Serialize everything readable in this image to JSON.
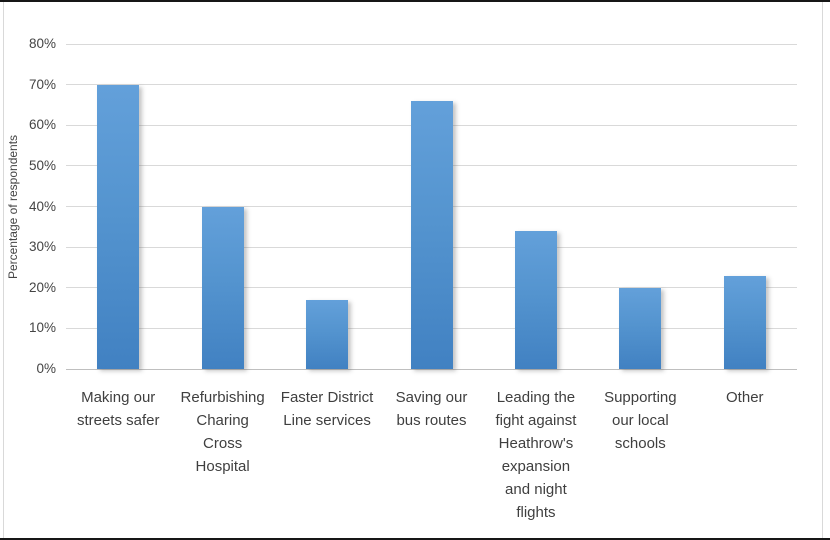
{
  "chart_data": {
    "type": "bar",
    "title": "",
    "categories": [
      "Making our streets safer",
      "Refurbishing Charing Cross Hospital",
      "Faster District Line services",
      "Saving our bus routes",
      "Leading the fight against Heathrow's expansion and night flights",
      "Supporting our local schools",
      "Other"
    ],
    "values": [
      70,
      40,
      17,
      66,
      34,
      20,
      23
    ],
    "value_unit": "percent",
    "xlabel": "",
    "ylabel": "Percentage of respondents",
    "ylim": [
      0,
      80
    ],
    "ytick_step": 10,
    "ytick_labels": [
      "0%",
      "10%",
      "20%",
      "30%",
      "40%",
      "50%",
      "60%",
      "70%",
      "80%"
    ],
    "grid": true,
    "legend": false,
    "colors": {
      "bar_gradient_top": "#63a0da",
      "bar_gradient_bottom": "#4181c2",
      "gridline": "#d9d9d9",
      "axis_line": "#bfbfbf",
      "text": "#444444",
      "frame_border": "#d9d9d9",
      "edge_border": "#161616",
      "background": "#ffffff"
    }
  }
}
